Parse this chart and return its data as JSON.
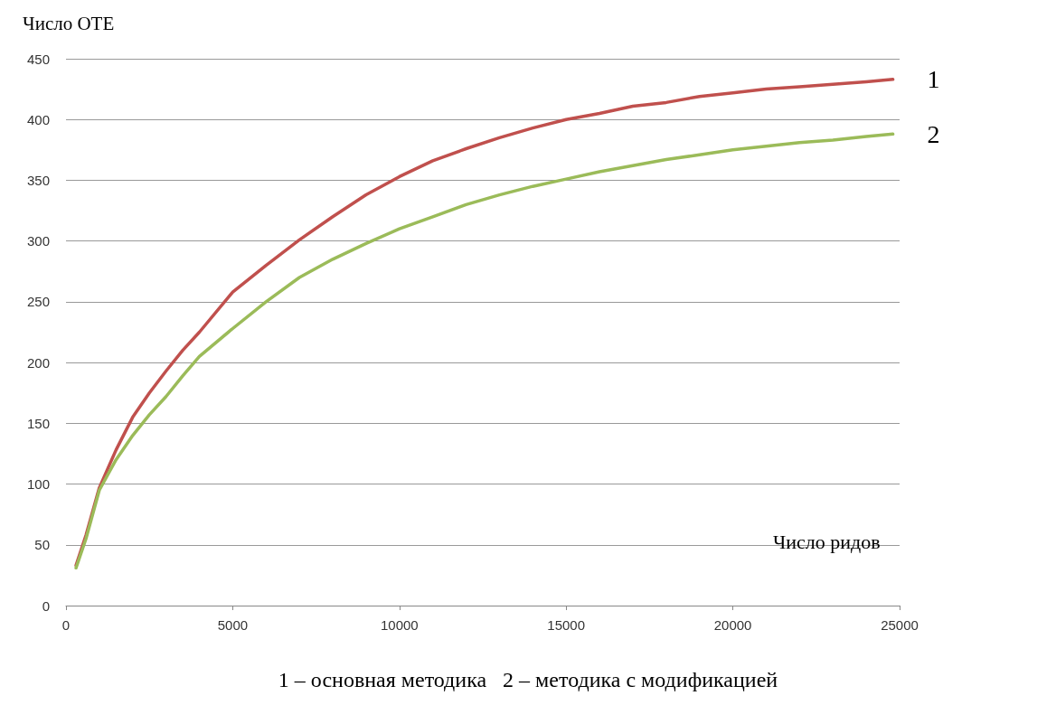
{
  "chart_data": {
    "type": "line",
    "ylabel": "Число ОТЕ",
    "xlabel": "Число ридов",
    "annotations": [
      "1 – основная методика   2 – методика с модификацией"
    ],
    "x": [
      300,
      600,
      1000,
      1500,
      2000,
      2500,
      3000,
      3500,
      4000,
      5000,
      6000,
      7000,
      8000,
      9000,
      10000,
      11000,
      12000,
      13000,
      14000,
      15000,
      16000,
      17000,
      18000,
      19000,
      20000,
      21000,
      22000,
      23000,
      24000,
      24800
    ],
    "series": [
      {
        "name": "1",
        "color": "#c0504d",
        "values": [
          33,
          58,
          97,
          128,
          155,
          175,
          193,
          210,
          225,
          258,
          280,
          301,
          320,
          338,
          353,
          366,
          376,
          385,
          393,
          400,
          405,
          411,
          414,
          419,
          422,
          425,
          427,
          429,
          431,
          433
        ]
      },
      {
        "name": "2",
        "color": "#9bbb59",
        "values": [
          31,
          55,
          95,
          120,
          140,
          157,
          172,
          189,
          205,
          228,
          250,
          270,
          285,
          298,
          310,
          320,
          330,
          338,
          345,
          351,
          357,
          362,
          367,
          371,
          375,
          378,
          381,
          383,
          386,
          388
        ]
      }
    ],
    "xlim": [
      0,
      25000
    ],
    "xticks": [
      0,
      5000,
      10000,
      15000,
      20000,
      25000
    ],
    "ylim": [
      0,
      450
    ],
    "yticks": [
      0,
      50,
      100,
      150,
      200,
      250,
      300,
      350,
      400,
      450
    ],
    "grid": "y",
    "legend": false,
    "marker": "none",
    "line_style": "solid"
  }
}
